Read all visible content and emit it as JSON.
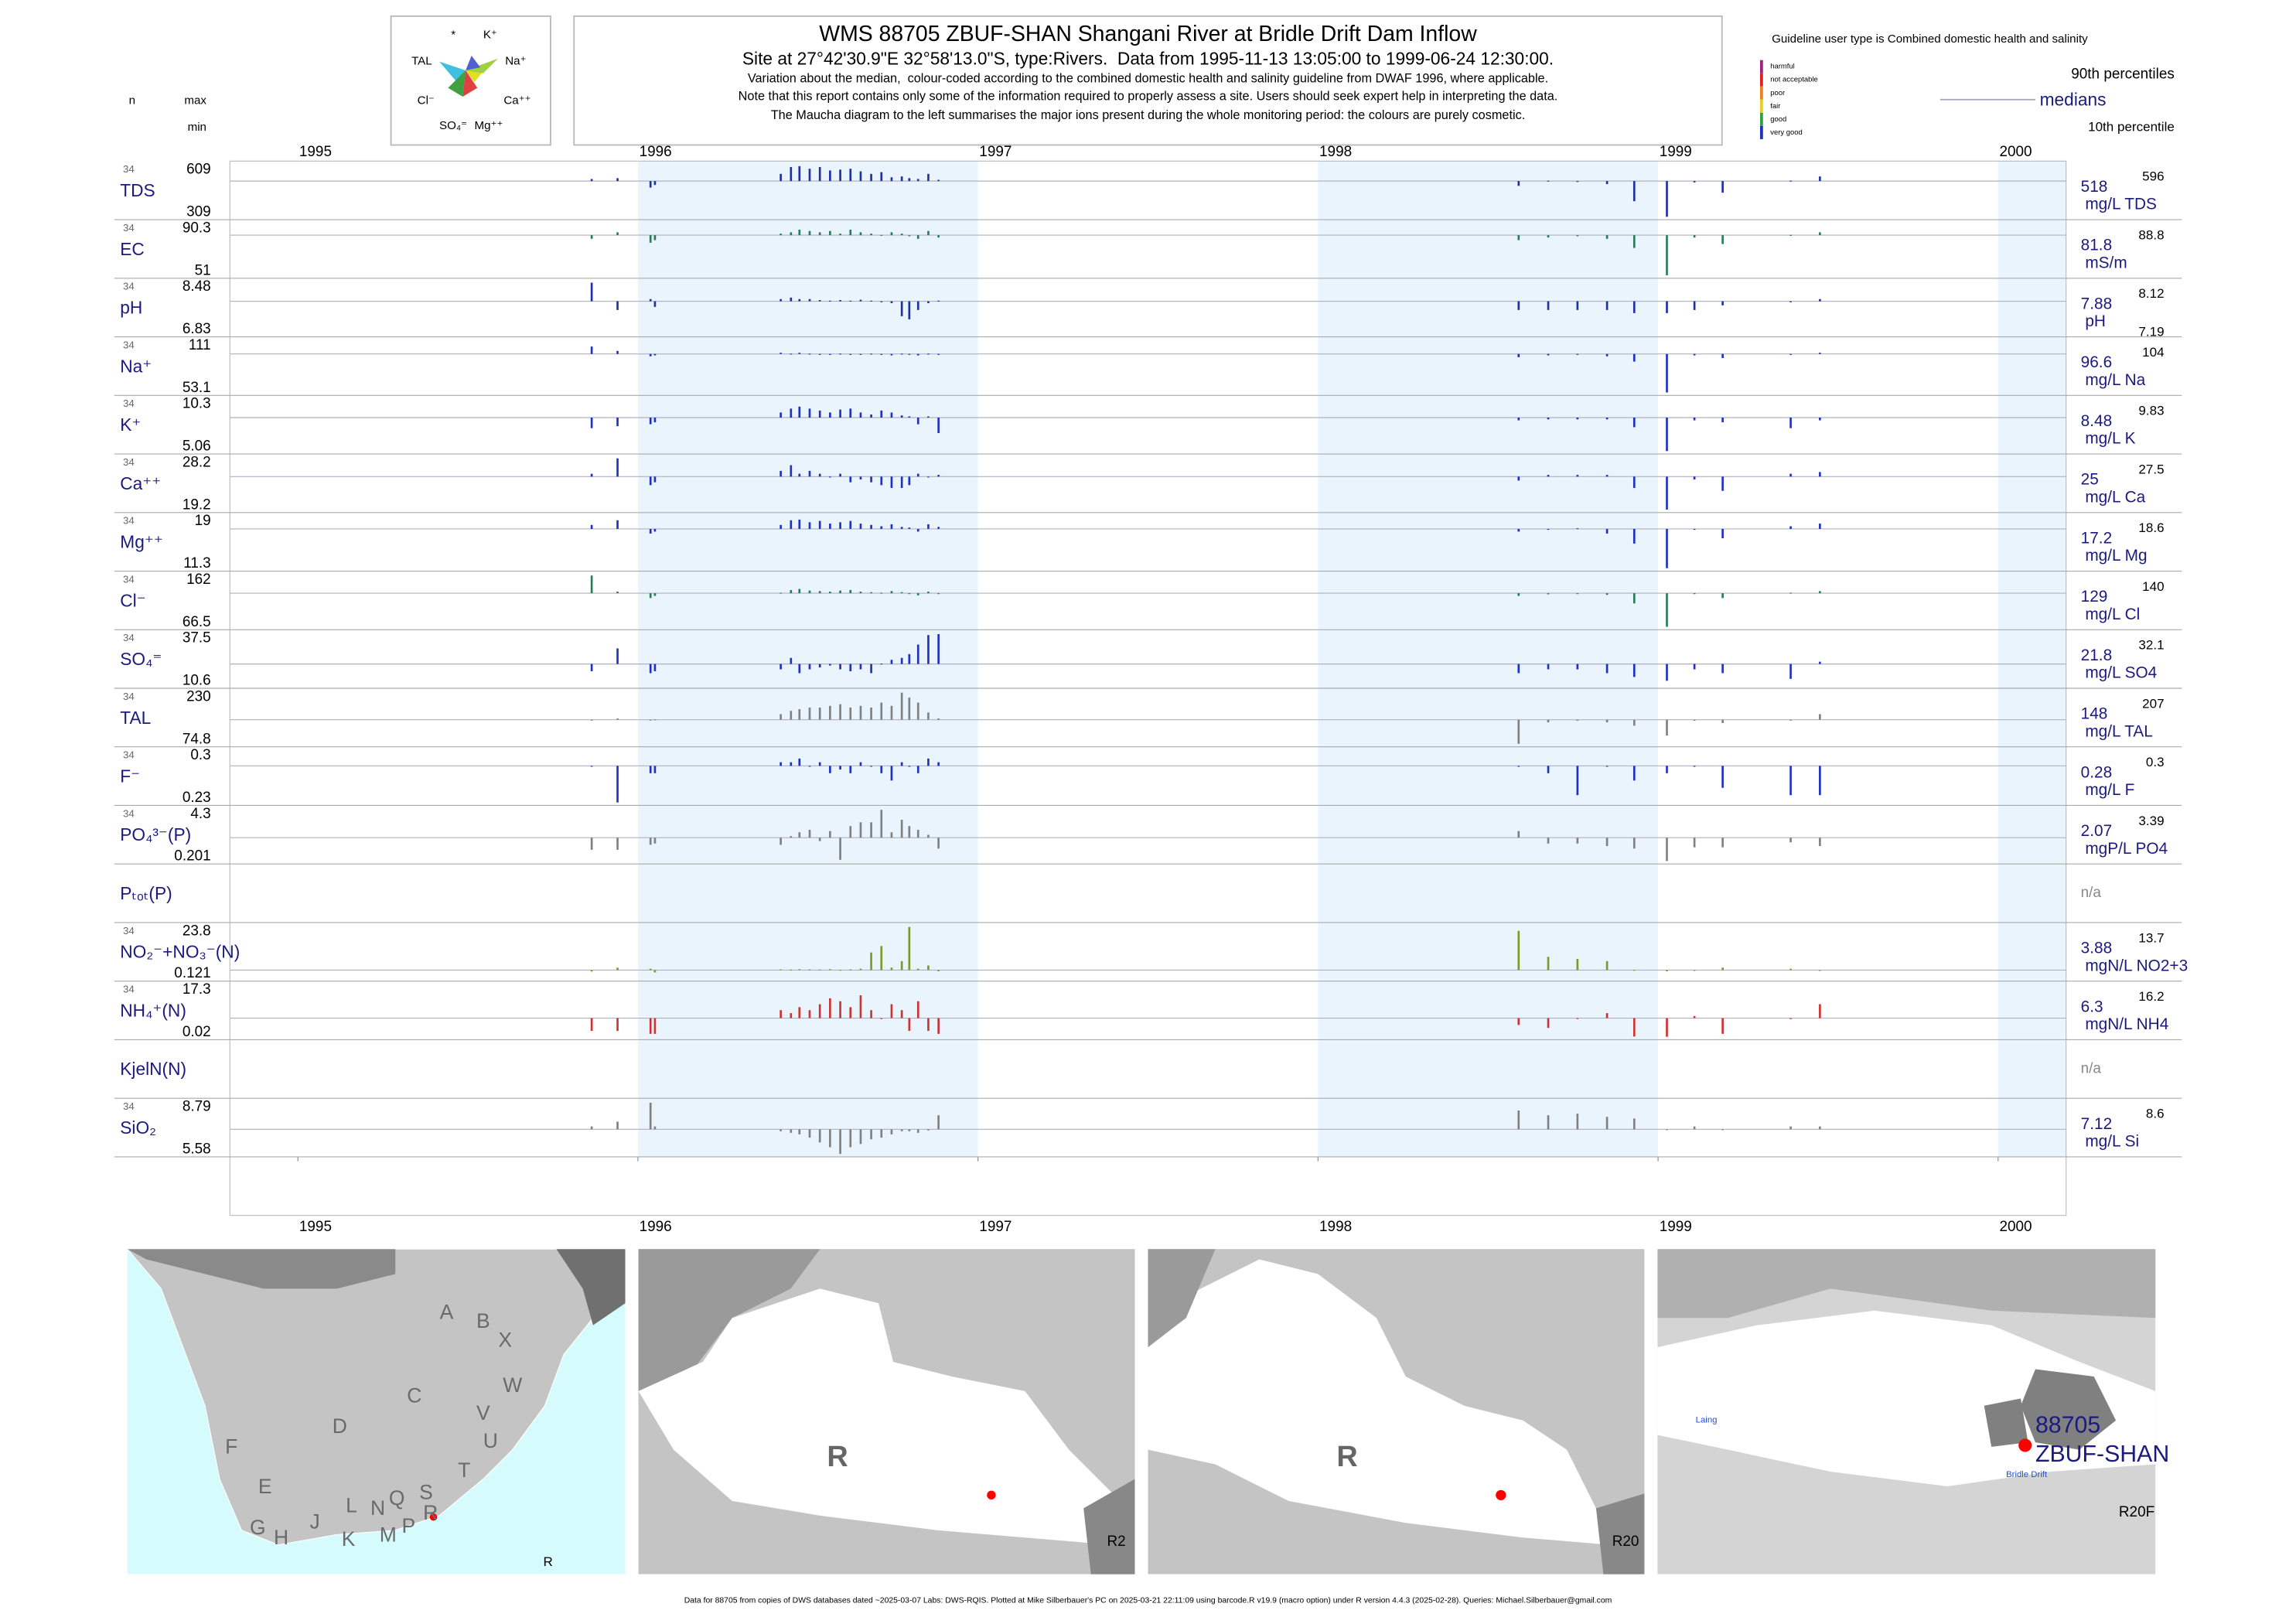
{
  "header": {
    "title": "WMS 88705 ZBUF-SHAN Shangani River at Bridle Drift Dam Inflow",
    "subtitle": "Site at 27°42'30.9\"E 32°58'13.0\"S, type:Rivers.  Data from 1995-11-13 13:05:00 to 1999-06-24 12:30:00.",
    "notes": [
      "Variation about the median,  colour-coded according to the combined domestic health and salinity guideline from DWAF 1996, where applicable.",
      "Note that this report contains only some of the information required to properly assess a site. Users should seek expert help in interpreting the data.",
      "The Maucha diagram to the left summarises the major ions present during the whole monitoring period: the colours are purely cosmetic."
    ]
  },
  "maucha": {
    "labels": [
      "*",
      "K⁺",
      "TAL",
      "Na⁺",
      "Cl⁻",
      "Ca⁺⁺",
      "SO₄⁼",
      "Mg⁺⁺"
    ]
  },
  "legend": {
    "guideline": "Guideline user type is Combined domestic health and salinity",
    "classes": [
      {
        "name": "harmful",
        "color": "#a0208a"
      },
      {
        "name": "not acceptable",
        "color": "#e02020"
      },
      {
        "name": "poor",
        "color": "#f08020"
      },
      {
        "name": "fair",
        "color": "#e8d020"
      },
      {
        "name": "good",
        "color": "#30a040"
      },
      {
        "name": "very good",
        "color": "#2030c0"
      }
    ],
    "p90": "90th percentiles",
    "medians": "medians",
    "p10": "10th percentile"
  },
  "chart_data": {
    "type": "strip",
    "column_headers": {
      "n": "n",
      "max": "max",
      "min": "min"
    },
    "xlim": [
      1994.8,
      2000.2
    ],
    "xticks": [
      1995,
      1996,
      1997,
      1998,
      1999,
      2000
    ],
    "shaded_years": [
      1996,
      1998,
      2000
    ],
    "x": [
      1995.864,
      1995.94,
      1996.037,
      1996.05,
      1996.42,
      1996.45,
      1996.475,
      1996.505,
      1996.535,
      1996.565,
      1996.595,
      1996.625,
      1996.655,
      1996.686,
      1996.716,
      1996.746,
      1996.776,
      1996.798,
      1996.824,
      1996.854,
      1996.884,
      1998.59,
      1998.677,
      1998.763,
      1998.85,
      1998.93,
      1999.026,
      1999.107,
      1999.19,
      1999.39,
      1999.476
    ],
    "rows": [
      {
        "name": "TDS",
        "n": 34,
        "max": 609,
        "min": 309,
        "median": 518,
        "unit": "mg/L TDS",
        "p90": 596,
        "color": "#2030a0",
        "values": [
          530,
          535,
          480,
          495,
          560,
          600,
          605,
          590,
          600,
          580,
          585,
          590,
          575,
          560,
          570,
          540,
          545,
          535,
          530,
          560,
          525,
          490,
          520,
          515,
          500,
          400,
          309,
          510,
          450,
          520,
          545
        ]
      },
      {
        "name": "EC",
        "n": 34,
        "max": 90.3,
        "min": 51,
        "median": 81.8,
        "unit": "mS/m",
        "p90": 88.8,
        "color": "#2a7a5a",
        "values": [
          79,
          84,
          76,
          78,
          83,
          84,
          86,
          85,
          84,
          85,
          83,
          86,
          84,
          83,
          82,
          84,
          83,
          81,
          79,
          85,
          80,
          78,
          80,
          81,
          79,
          72,
          51,
          80,
          75,
          82,
          84
        ]
      },
      {
        "name": "pH",
        "n": 34,
        "max": 8.48,
        "min": 6.83,
        "median": 7.88,
        "unit": "pH",
        "p90": 8.12,
        "p10": 7.19,
        "color": "#2030a0",
        "values": [
          8.48,
          7.6,
          7.95,
          7.7,
          7.95,
          8.0,
          7.95,
          7.95,
          7.92,
          7.9,
          7.92,
          7.9,
          7.93,
          7.9,
          7.85,
          7.82,
          7.4,
          7.3,
          7.6,
          7.82,
          7.9,
          7.6,
          7.6,
          7.6,
          7.6,
          7.5,
          7.5,
          7.6,
          7.75,
          7.85,
          7.95
        ]
      },
      {
        "name": "Na⁺",
        "n": 34,
        "max": 111,
        "min": 53.1,
        "median": 96.6,
        "unit": "mg/L Na",
        "p90": 104,
        "color": "#2030c0",
        "values": [
          105,
          100,
          94,
          95,
          98,
          97,
          98,
          97,
          96,
          96,
          97,
          96,
          96,
          97,
          96,
          95,
          97,
          96,
          95,
          97,
          96,
          93,
          95,
          96,
          94,
          88,
          53.1,
          95,
          92,
          96,
          98
        ]
      },
      {
        "name": "K⁺",
        "n": 34,
        "max": 10.3,
        "min": 5.06,
        "median": 8.48,
        "unit": "mg/L K",
        "p90": 9.83,
        "color": "#2030c0",
        "values": [
          7.4,
          7.6,
          7.8,
          8.0,
          9.0,
          9.4,
          9.6,
          9.4,
          9.2,
          9.0,
          9.3,
          9.4,
          9.0,
          8.8,
          9.2,
          9.0,
          8.7,
          8.6,
          7.8,
          8.6,
          6.9,
          8.2,
          8.3,
          8.3,
          8.3,
          7.5,
          5.06,
          8.2,
          8.0,
          7.4,
          8.2
        ]
      },
      {
        "name": "Ca⁺⁺",
        "n": 34,
        "max": 28.2,
        "min": 19.2,
        "median": 25,
        "unit": "mg/L Ca",
        "p90": 27.5,
        "color": "#2030c0",
        "values": [
          25.5,
          28.2,
          23.5,
          24,
          26,
          27,
          25.5,
          26,
          25.5,
          25,
          25.5,
          24,
          24.5,
          24,
          23.5,
          23,
          23,
          23.5,
          25.5,
          25,
          25.3,
          24.3,
          25.3,
          25.3,
          25.3,
          23,
          19.2,
          24.5,
          22.5,
          25.5,
          25.8
        ]
      },
      {
        "name": "Mg⁺⁺",
        "n": 34,
        "max": 19,
        "min": 11.3,
        "median": 17.2,
        "unit": "mg/L Mg",
        "p90": 18.6,
        "color": "#2030c0",
        "values": [
          17.8,
          18.5,
          16.5,
          16.8,
          17.8,
          18.5,
          18.6,
          18.2,
          18.4,
          18.0,
          18.2,
          18.4,
          18.0,
          17.8,
          17.6,
          17.9,
          17.5,
          17.4,
          16.8,
          17.9,
          17.5,
          16.8,
          17.2,
          17.3,
          16.5,
          15,
          11.3,
          17.2,
          15.8,
          17.6,
          18
        ]
      },
      {
        "name": "Cl⁻",
        "n": 34,
        "max": 162,
        "min": 66.5,
        "median": 129,
        "unit": "mg/L Cl",
        "p90": 140,
        "color": "#2a7a5a",
        "values": [
          162,
          132,
          120,
          124,
          130,
          135,
          137,
          134,
          133,
          132,
          134,
          135,
          132,
          131,
          130,
          133,
          131,
          129,
          125,
          132,
          128,
          124,
          127,
          128,
          126,
          110,
          66.5,
          128,
          120,
          130,
          133
        ]
      },
      {
        "name": "SO₄⁼",
        "n": 34,
        "max": 37.5,
        "min": 10.6,
        "median": 21.8,
        "unit": "mg/L SO4",
        "p90": 32.1,
        "color": "#2030c0",
        "values": [
          18,
          30,
          17,
          18,
          19,
          25,
          17,
          19,
          20,
          21,
          19,
          18,
          19,
          17,
          22,
          24,
          25,
          27,
          32,
          37,
          37.5,
          17,
          19,
          19,
          17,
          15,
          13,
          19,
          17,
          14,
          23
        ]
      },
      {
        "name": "TAL",
        "n": 34,
        "max": 230,
        "min": 74.8,
        "median": 148,
        "unit": "mg/L TAL",
        "p90": 207,
        "color": "#808080",
        "values": [
          148,
          152,
          148,
          149,
          165,
          175,
          180,
          185,
          185,
          190,
          195,
          185,
          190,
          185,
          200,
          190,
          230,
          215,
          200,
          170,
          152,
          75,
          140,
          145,
          140,
          130,
          100,
          145,
          138,
          148,
          165
        ]
      },
      {
        "name": "F⁻",
        "n": 34,
        "max": 0.3,
        "min": 0.23,
        "median": 0.28,
        "unit": "mg/L F",
        "p90": 0.3,
        "color": "#2030c0",
        "values": [
          0.28,
          0.23,
          0.27,
          0.27,
          0.285,
          0.285,
          0.29,
          0.28,
          0.285,
          0.27,
          0.275,
          0.27,
          0.285,
          0.28,
          0.27,
          0.26,
          0.285,
          0.28,
          0.27,
          0.29,
          0.285,
          0.28,
          0.27,
          0.24,
          0.28,
          0.26,
          0.27,
          0.28,
          0.25,
          0.24,
          0.24
        ]
      },
      {
        "name": "PO₄³⁻(P)",
        "n": 34,
        "max": 4.3,
        "min": 0.201,
        "median": 2.07,
        "unit": "mgP/L PO4",
        "p90": 3.39,
        "color": "#808080",
        "values": [
          1.1,
          1.1,
          1.5,
          1.6,
          1.5,
          2.2,
          2.5,
          2.7,
          1.8,
          2.6,
          0.3,
          3.0,
          3.3,
          3.3,
          4.3,
          2.5,
          3.5,
          3.0,
          2.7,
          2.3,
          1.2,
          2.6,
          1.6,
          1.6,
          1.4,
          1.2,
          0.201,
          1.3,
          1.3,
          1.7,
          1.4
        ]
      },
      {
        "name": "Pₜₒₜ(P)",
        "note": "n/a"
      },
      {
        "name": "NO₂⁻+NO₃⁻(N)",
        "n": 34,
        "max": 23.8,
        "min": 0.121,
        "median": 3.88,
        "unit": "mgN/L NO2+3",
        "p90": 13.7,
        "color": "#7a9a2a",
        "values": [
          3.2,
          5,
          4.5,
          2.8,
          4.2,
          4.1,
          4.3,
          4.2,
          4.1,
          4.3,
          4.0,
          4.2,
          4.5,
          12,
          15,
          5,
          8,
          23.8,
          4.5,
          6,
          3.3,
          22,
          10,
          9,
          8,
          4,
          3.3,
          3.5,
          5,
          4.5,
          3.8
        ]
      },
      {
        "name": "NH₄⁺(N)",
        "n": 34,
        "max": 17.3,
        "min": 0.02,
        "median": 6.3,
        "unit": "mgN/L NH4",
        "p90": 16.2,
        "color": "#cc3333",
        "values": [
          2,
          2,
          1,
          1,
          9,
          8,
          10,
          9,
          11,
          13,
          12,
          10,
          14,
          9,
          6,
          11,
          9,
          2,
          12,
          2,
          1,
          4,
          3,
          6,
          8,
          0.1,
          0.02,
          7,
          1,
          6,
          11
        ]
      },
      {
        "name": "KjelN(N)",
        "note": "n/a"
      },
      {
        "name": "SiO₂",
        "n": 34,
        "max": 8.79,
        "min": 5.58,
        "median": 7.12,
        "unit": "mg/L Si",
        "p90": 8.6,
        "color": "#808080",
        "values": [
          7.3,
          7.6,
          8.79,
          7.3,
          7.0,
          6.9,
          6.8,
          6.6,
          6.3,
          6.0,
          5.58,
          6.0,
          6.2,
          6.5,
          6.6,
          6.8,
          7.0,
          7.0,
          6.9,
          7.05,
          8.0,
          8.3,
          8.0,
          8.1,
          7.9,
          7.8,
          7.1,
          7.3,
          7.1,
          7.3,
          7.3
        ]
      }
    ]
  },
  "maps": {
    "regions": [
      "A",
      "B",
      "X",
      "C",
      "W",
      "V",
      "D",
      "U",
      "F",
      "T",
      "E",
      "S",
      "L",
      "N",
      "Q",
      "R",
      "J",
      "G",
      "H",
      "K",
      "M",
      "P"
    ],
    "panel1_label": "R",
    "panel2_big": "R",
    "panel2_label": "R2",
    "panel3_big": "R",
    "panel3_label": "R20",
    "panel4_label": "R20F",
    "laing": "Laing",
    "bridle": "Bridle Drift",
    "site_id": "88705",
    "site_code": "ZBUF-SHAN"
  },
  "footer": "Data for 88705 from copies of DWS databases dated ~2025-03-07 Labs: DWS-RQIS. Plotted at Mike Silberbauer's PC on 2025-03-21 22:11:09 using barcode.R v19.9 (macro option) under R version 4.4.3 (2025-02-28). Queries: Michael.Silberbauer@gmail.com"
}
